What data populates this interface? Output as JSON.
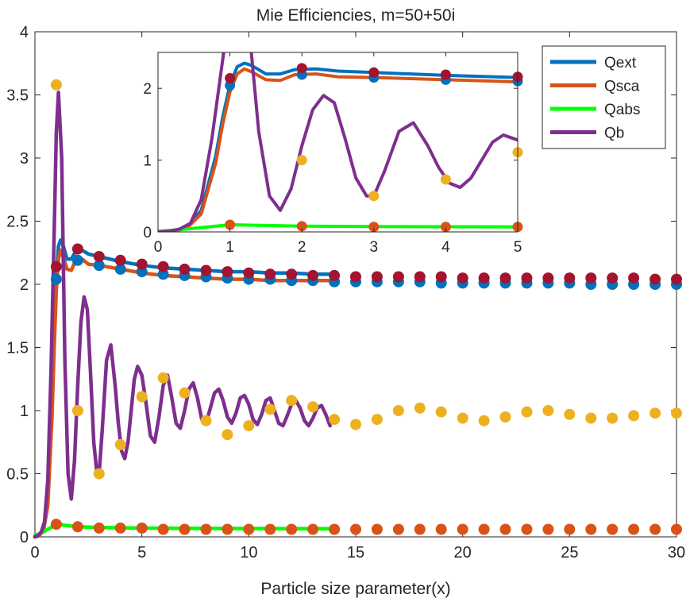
{
  "chart_data": {
    "type": "line",
    "title": "Mie Efficiencies, m=50+50i",
    "xlabel": "Particle size parameter(x)",
    "ylabel": "",
    "xlim": [
      0,
      30
    ],
    "ylim": [
      0,
      4
    ],
    "x_ticks": [
      "0",
      "5",
      "10",
      "15",
      "20",
      "25",
      "30"
    ],
    "y_ticks": [
      "0",
      "0.5",
      "1",
      "1.5",
      "2",
      "2.5",
      "3",
      "3.5",
      "4"
    ],
    "legend": {
      "placement": "top-right",
      "entries": [
        {
          "name": "Qext",
          "color": "#0072BD"
        },
        {
          "name": "Qsca",
          "color": "#D95319"
        },
        {
          "name": "Qabs",
          "color": "#00FF00"
        },
        {
          "name": "Qb",
          "color": "#7E2F8E"
        }
      ]
    },
    "line_series": [
      {
        "name": "Qext",
        "color": "#0072BD",
        "x": [
          0,
          0.2,
          0.4,
          0.6,
          0.8,
          0.9,
          1,
          1.1,
          1.2,
          1.3,
          1.5,
          1.7,
          1.9,
          2.2,
          2.5,
          3,
          4,
          5,
          6,
          7,
          8,
          9,
          10,
          11,
          12,
          13,
          14
        ],
        "y": [
          0,
          0.01,
          0.06,
          0.3,
          1.05,
          1.6,
          2.05,
          2.3,
          2.35,
          2.32,
          2.2,
          2.2,
          2.26,
          2.27,
          2.24,
          2.22,
          2.18,
          2.15,
          2.13,
          2.12,
          2.11,
          2.1,
          2.1,
          2.09,
          2.09,
          2.08,
          2.08
        ]
      },
      {
        "name": "Qsca",
        "color": "#D95319",
        "x": [
          0,
          0.2,
          0.4,
          0.6,
          0.8,
          0.9,
          1,
          1.1,
          1.2,
          1.3,
          1.5,
          1.7,
          1.9,
          2.2,
          2.5,
          3,
          4,
          5,
          6,
          7,
          8,
          9,
          10,
          11,
          12,
          13,
          14
        ],
        "y": [
          0,
          0.01,
          0.05,
          0.25,
          0.95,
          1.5,
          1.95,
          2.2,
          2.27,
          2.23,
          2.12,
          2.11,
          2.19,
          2.2,
          2.16,
          2.15,
          2.12,
          2.09,
          2.07,
          2.06,
          2.05,
          2.04,
          2.04,
          2.03,
          2.03,
          2.03,
          2.03
        ]
      },
      {
        "name": "Qabs",
        "color": "#00FF00",
        "x": [
          0,
          0.3,
          0.6,
          1,
          1.5,
          2,
          3,
          4,
          5,
          7,
          10,
          14
        ],
        "y": [
          0.01,
          0.03,
          0.06,
          0.1,
          0.09,
          0.08,
          0.075,
          0.072,
          0.07,
          0.068,
          0.066,
          0.065
        ]
      },
      {
        "name": "Qb",
        "color": "#7E2F8E",
        "x": [
          0,
          0.15,
          0.3,
          0.45,
          0.6,
          0.75,
          0.9,
          1.0,
          1.1,
          1.25,
          1.4,
          1.55,
          1.7,
          1.85,
          2.0,
          2.15,
          2.3,
          2.45,
          2.6,
          2.75,
          2.9,
          3.0,
          3.15,
          3.35,
          3.55,
          3.75,
          3.9,
          4.05,
          4.2,
          4.35,
          4.5,
          4.65,
          4.8,
          5.0,
          5.2,
          5.4,
          5.6,
          5.8,
          6.0,
          6.2,
          6.4,
          6.6,
          6.8,
          7.0,
          7.2,
          7.4,
          7.6,
          7.8,
          8.0,
          8.2,
          8.4,
          8.6,
          8.8,
          9.0,
          9.2,
          9.4,
          9.6,
          9.8,
          10.0,
          10.2,
          10.4,
          10.6,
          10.8,
          11.0,
          11.2,
          11.4,
          11.6,
          11.8,
          12.0,
          12.2,
          12.4,
          12.6,
          12.8,
          13.0,
          13.2,
          13.4,
          13.6,
          13.8
        ],
        "y": [
          0,
          0.01,
          0.04,
          0.12,
          0.45,
          1.3,
          2.4,
          3.2,
          3.52,
          3.0,
          1.4,
          0.5,
          0.3,
          0.6,
          1.2,
          1.7,
          1.9,
          1.8,
          1.3,
          0.75,
          0.5,
          0.5,
          0.85,
          1.4,
          1.52,
          1.2,
          0.9,
          0.68,
          0.62,
          0.75,
          1.0,
          1.25,
          1.35,
          1.28,
          1.05,
          0.8,
          0.75,
          0.95,
          1.2,
          1.28,
          1.1,
          0.9,
          0.86,
          1.0,
          1.17,
          1.22,
          1.1,
          0.93,
          0.9,
          1.02,
          1.14,
          1.17,
          1.08,
          0.95,
          0.9,
          0.98,
          1.1,
          1.12,
          1.05,
          0.93,
          0.89,
          0.97,
          1.08,
          1.1,
          1.0,
          0.9,
          0.88,
          0.96,
          1.05,
          1.08,
          1.02,
          0.92,
          0.88,
          0.94,
          1.02,
          1.04,
          0.97,
          0.88
        ]
      }
    ],
    "marker_series": [
      {
        "name": "Qext markers",
        "color": "#0072BD",
        "x": [
          1,
          2,
          3,
          4,
          5,
          6,
          7,
          8,
          9,
          10,
          11,
          12,
          13,
          14,
          15,
          16,
          17,
          18,
          19,
          20,
          21,
          22,
          23,
          24,
          25,
          26,
          27,
          28,
          29,
          30
        ],
        "y": [
          2.04,
          2.19,
          2.15,
          2.12,
          2.1,
          2.08,
          2.07,
          2.06,
          2.05,
          2.04,
          2.04,
          2.03,
          2.03,
          2.02,
          2.02,
          2.02,
          2.02,
          2.02,
          2.01,
          2.01,
          2.01,
          2.01,
          2.01,
          2.01,
          2.01,
          2.0,
          2.0,
          2.0,
          2.0,
          2.0
        ]
      },
      {
        "name": "Qsca markers",
        "color": "#A2142F",
        "x": [
          1,
          2,
          3,
          4,
          5,
          6,
          7,
          8,
          9,
          10,
          11,
          12,
          13,
          14,
          15,
          16,
          17,
          18,
          19,
          20,
          21,
          22,
          23,
          24,
          25,
          26,
          27,
          28,
          29,
          30
        ],
        "y": [
          2.14,
          2.28,
          2.22,
          2.19,
          2.16,
          2.14,
          2.12,
          2.11,
          2.1,
          2.09,
          2.08,
          2.08,
          2.07,
          2.07,
          2.06,
          2.06,
          2.06,
          2.06,
          2.06,
          2.05,
          2.05,
          2.05,
          2.05,
          2.05,
          2.05,
          2.05,
          2.05,
          2.05,
          2.04,
          2.04
        ]
      },
      {
        "name": "Qabs markers",
        "color": "#D95319",
        "x": [
          1,
          2,
          3,
          4,
          5,
          6,
          7,
          8,
          9,
          10,
          11,
          12,
          13,
          14,
          15,
          16,
          17,
          18,
          19,
          20,
          21,
          22,
          23,
          24,
          25,
          26,
          27,
          28,
          29,
          30
        ],
        "y": [
          0.1,
          0.08,
          0.07,
          0.07,
          0.07,
          0.06,
          0.06,
          0.06,
          0.06,
          0.06,
          0.06,
          0.06,
          0.06,
          0.06,
          0.06,
          0.06,
          0.06,
          0.06,
          0.06,
          0.06,
          0.06,
          0.06,
          0.06,
          0.06,
          0.06,
          0.06,
          0.06,
          0.06,
          0.06,
          0.06
        ]
      },
      {
        "name": "Qb markers",
        "color": "#EDB120",
        "x": [
          1,
          2,
          3,
          4,
          5,
          6,
          7,
          8,
          9,
          10,
          11,
          12,
          13,
          14,
          15,
          16,
          17,
          18,
          19,
          20,
          21,
          22,
          23,
          24,
          25,
          26,
          27,
          28,
          29,
          30
        ],
        "y": [
          3.58,
          1.0,
          0.5,
          0.73,
          1.11,
          1.26,
          1.14,
          0.92,
          0.81,
          0.88,
          1.01,
          1.08,
          1.03,
          0.93,
          0.89,
          0.93,
          1.0,
          1.02,
          0.99,
          0.94,
          0.92,
          0.95,
          0.99,
          1.0,
          0.97,
          0.94,
          0.94,
          0.96,
          0.98,
          0.98
        ]
      }
    ],
    "inset": {
      "xlim": [
        0,
        5
      ],
      "ylim": [
        0,
        2.5
      ],
      "x_ticks": [
        "0",
        "1",
        "2",
        "3",
        "4",
        "5"
      ],
      "y_ticks": [
        "0",
        "1",
        "2"
      ]
    }
  }
}
